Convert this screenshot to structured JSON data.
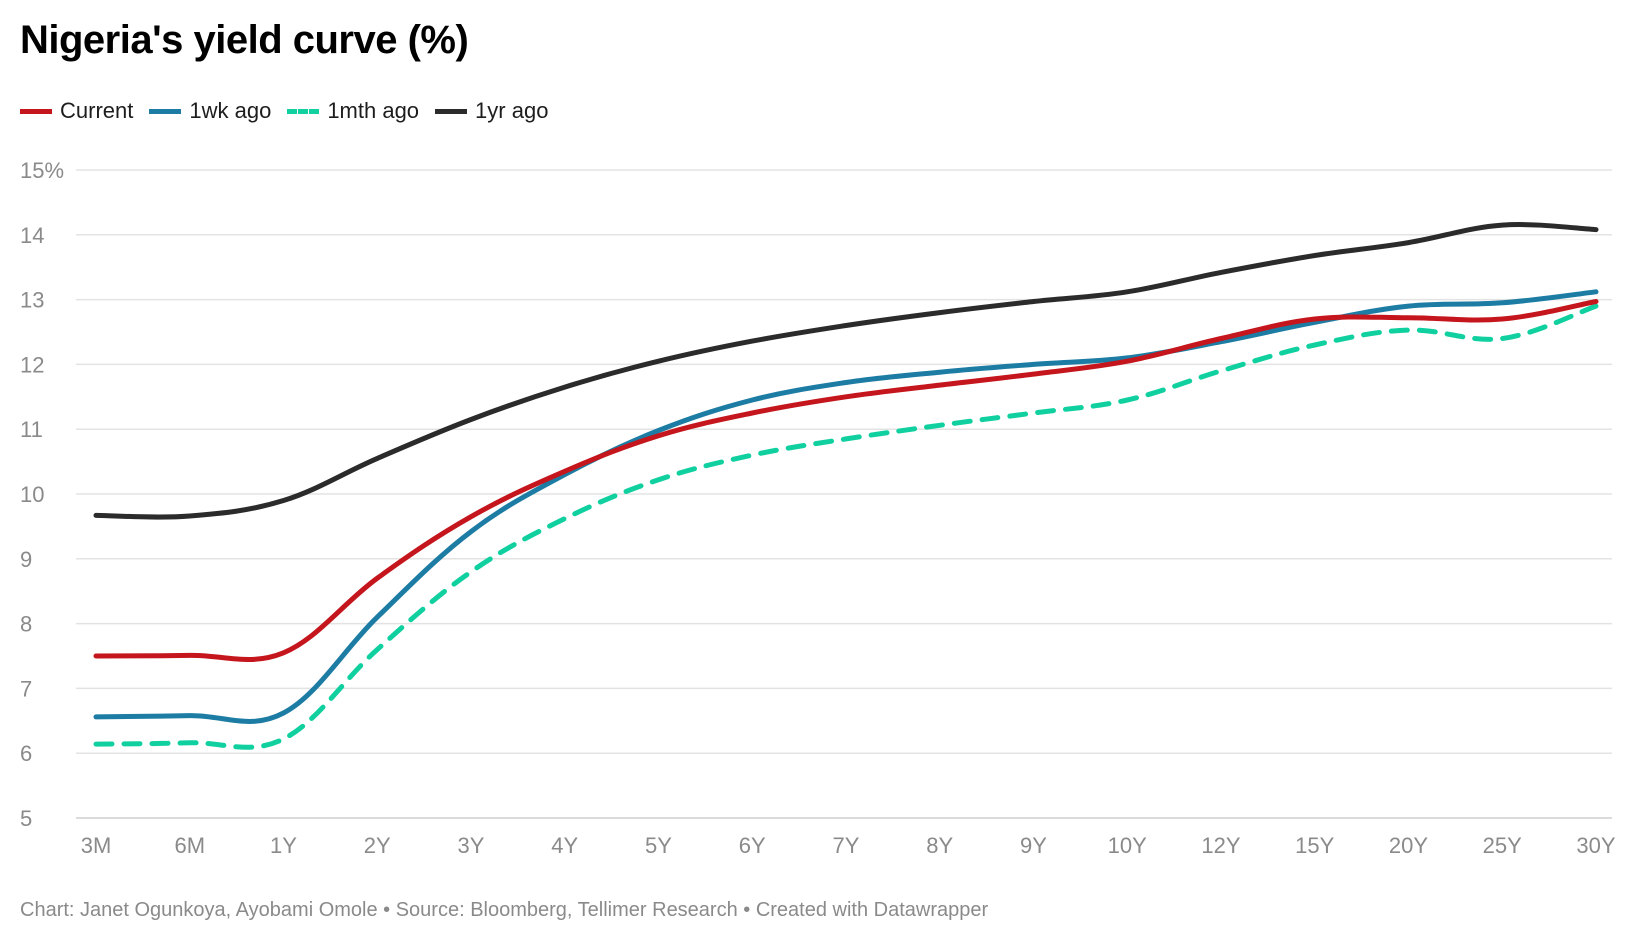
{
  "title": "Nigeria's yield curve (%)",
  "footer": "Chart: Janet Ogunkoya, Ayobami Omole • Source: Bloomberg, Tellimer Research • Created with Datawrapper",
  "chart_data": {
    "type": "line",
    "title": "Nigeria's yield curve (%)",
    "xlabel": "",
    "ylabel": "",
    "categories": [
      "3M",
      "6M",
      "1Y",
      "2Y",
      "3Y",
      "4Y",
      "5Y",
      "6Y",
      "7Y",
      "8Y",
      "9Y",
      "10Y",
      "12Y",
      "15Y",
      "20Y",
      "25Y",
      "30Y"
    ],
    "y_ticks": [
      "15%",
      "14",
      "13",
      "12",
      "11",
      "10",
      "9",
      "8",
      "7",
      "6",
      "5"
    ],
    "ylim": [
      5,
      15
    ],
    "grid": true,
    "legend_position": "top-left",
    "series": [
      {
        "name": "Current",
        "color": "#c4161c",
        "dashed": false,
        "values": [
          7.5,
          7.51,
          7.55,
          8.7,
          9.65,
          10.35,
          10.9,
          11.25,
          11.5,
          11.68,
          11.85,
          12.05,
          12.4,
          12.7,
          12.72,
          12.7,
          12.97
        ]
      },
      {
        "name": "1wk ago",
        "color": "#1c7ca3",
        "dashed": false,
        "values": [
          6.56,
          6.58,
          6.62,
          8.1,
          9.42,
          10.3,
          10.98,
          11.45,
          11.72,
          11.88,
          12.0,
          12.1,
          12.35,
          12.65,
          12.9,
          12.95,
          13.12
        ]
      },
      {
        "name": "1mth ago",
        "color": "#10d0a0",
        "dashed": true,
        "values": [
          6.14,
          6.16,
          6.22,
          7.6,
          8.8,
          9.62,
          10.22,
          10.6,
          10.85,
          11.06,
          11.25,
          11.45,
          11.9,
          12.3,
          12.53,
          12.4,
          12.9
        ]
      },
      {
        "name": "1yr ago",
        "color": "#2b2b2b",
        "dashed": false,
        "values": [
          9.67,
          9.66,
          9.9,
          10.55,
          11.15,
          11.65,
          12.05,
          12.36,
          12.6,
          12.8,
          12.97,
          13.12,
          13.42,
          13.68,
          13.88,
          14.15,
          14.08
        ]
      }
    ]
  }
}
